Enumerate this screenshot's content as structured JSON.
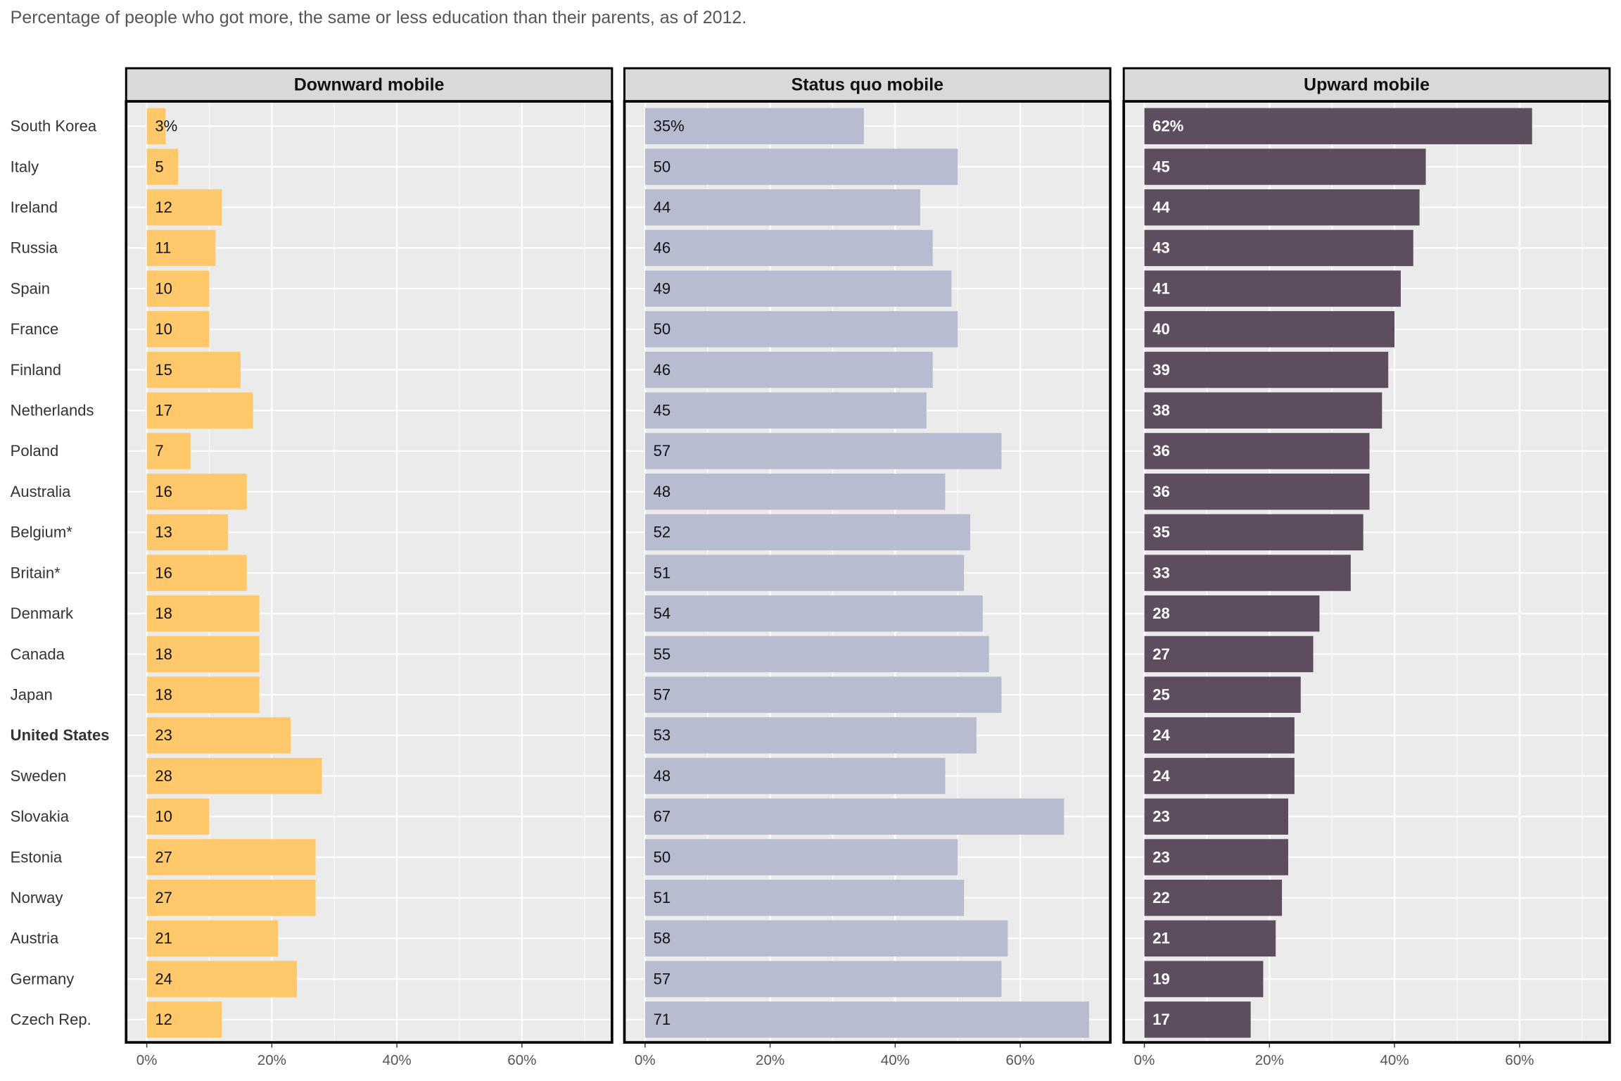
{
  "chart_data": {
    "type": "bar",
    "orientation": "horizontal",
    "title": "Percentage of people who got more, the same or less education than their parents, as of 2012.",
    "categories": [
      "South Korea",
      "Italy",
      "Ireland",
      "Russia",
      "Spain",
      "France",
      "Finland",
      "Netherlands",
      "Poland",
      "Australia",
      "Belgium*",
      "Britain*",
      "Denmark",
      "Canada",
      "Japan",
      "United States",
      "Sweden",
      "Slovakia",
      "Estonia",
      "Norway",
      "Austria",
      "Germany",
      "Czech Rep."
    ],
    "bold_categories": [
      15
    ],
    "series": [
      {
        "name": "Downward mobile",
        "color": "#ffc96b",
        "label_color": "#111111",
        "label_bold": false,
        "values": [
          3,
          5,
          12,
          11,
          10,
          10,
          15,
          17,
          7,
          16,
          13,
          16,
          18,
          18,
          18,
          23,
          28,
          10,
          27,
          27,
          21,
          24,
          12
        ],
        "value_labels": [
          "3%",
          "5",
          "12",
          "11",
          "10",
          "10",
          "15",
          "17",
          "7",
          "16",
          "13",
          "16",
          "18",
          "18",
          "18",
          "23",
          "28",
          "10",
          "27",
          "27",
          "21",
          "24",
          "12"
        ]
      },
      {
        "name": "Status quo mobile",
        "color": "#b8bcd0",
        "label_color": "#111111",
        "label_bold": false,
        "values": [
          35,
          50,
          44,
          46,
          49,
          50,
          46,
          45,
          57,
          48,
          52,
          51,
          54,
          55,
          57,
          53,
          48,
          67,
          50,
          51,
          58,
          57,
          71
        ],
        "value_labels": [
          "35%",
          "50",
          "44",
          "46",
          "49",
          "50",
          "46",
          "45",
          "57",
          "48",
          "52",
          "51",
          "54",
          "55",
          "57",
          "53",
          "48",
          "67",
          "50",
          "51",
          "58",
          "57",
          "71"
        ]
      },
      {
        "name": "Upward mobile",
        "color": "#5e4d5f",
        "label_color": "#ffffff",
        "label_bold": true,
        "values": [
          62,
          45,
          44,
          43,
          41,
          40,
          39,
          38,
          36,
          36,
          35,
          33,
          28,
          27,
          25,
          24,
          24,
          23,
          23,
          22,
          21,
          19,
          17
        ],
        "value_labels": [
          "62%",
          "45",
          "44",
          "43",
          "41",
          "40",
          "39",
          "38",
          "36",
          "36",
          "35",
          "33",
          "28",
          "27",
          "25",
          "24",
          "24",
          "23",
          "23",
          "22",
          "21",
          "19",
          "17"
        ]
      }
    ],
    "xlim": [
      -3.3,
      74.4
    ],
    "xticks": [
      {
        "value": 0,
        "label": "0%"
      },
      {
        "value": 20,
        "label": "20%"
      },
      {
        "value": 40,
        "label": "40%"
      },
      {
        "value": 60,
        "label": "60%"
      }
    ],
    "minor_xticks": [
      10,
      30,
      50,
      70
    ],
    "grid": true
  }
}
